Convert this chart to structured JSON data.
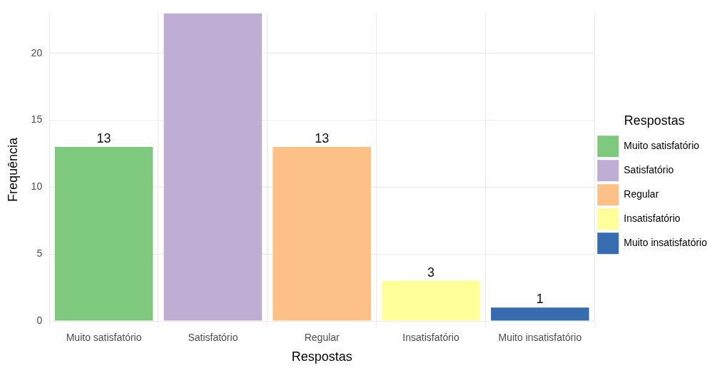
{
  "chart_data": {
    "type": "bar",
    "categories": [
      "Muito satisfatório",
      "Satisfatório",
      "Regular",
      "Insatisfatório",
      "Muito insatisfatório"
    ],
    "series": [
      {
        "name": "Muito satisfatório",
        "color": "#7fc97f",
        "values": [
          13,
          null,
          null,
          null,
          null
        ],
        "value_labels": [
          "13",
          null,
          null,
          null,
          null
        ]
      },
      {
        "name": "Satisfatório",
        "color": "#beaed4",
        "values": [
          null,
          23,
          null,
          null,
          null
        ],
        "value_labels": [
          null,
          null,
          null,
          null,
          null
        ]
      },
      {
        "name": "Regular",
        "color": "#fdc086",
        "values": [
          null,
          null,
          13,
          null,
          null
        ],
        "value_labels": [
          null,
          null,
          "13",
          null,
          null
        ]
      },
      {
        "name": "Insatisfatório",
        "color": "#ffff99",
        "values": [
          null,
          null,
          null,
          3,
          null
        ],
        "value_labels": [
          null,
          null,
          null,
          "3",
          null
        ]
      },
      {
        "name": "Muito insatisfatório",
        "color": "#386cb0",
        "values": [
          null,
          null,
          null,
          null,
          1
        ],
        "value_labels": [
          null,
          null,
          null,
          null,
          "1"
        ]
      }
    ],
    "xlabel": "Respostas",
    "ylabel": "Frequência",
    "legend_title": "Respostas",
    "legend": "right",
    "ylim": [
      -0.4,
      23
    ],
    "yticks": [
      0,
      5,
      10,
      15,
      20
    ],
    "grid": true
  }
}
